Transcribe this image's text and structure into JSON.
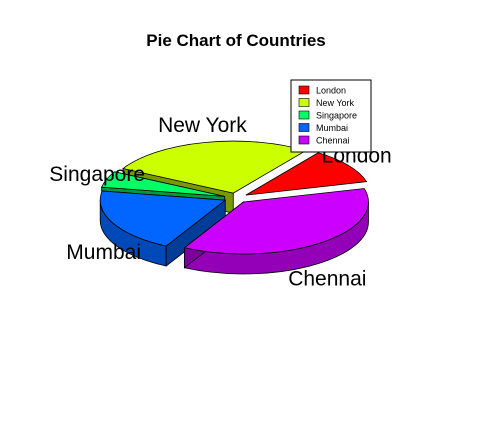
{
  "chart_data": {
    "type": "pie",
    "title": "Pie Chart of Countries",
    "three_d": true,
    "categories": [
      "London",
      "New York",
      "Singapore",
      "Mumbai",
      "Chennai"
    ],
    "values": [
      11,
      27,
      5,
      20,
      37
    ],
    "colors": [
      "#ff0000",
      "#ccff00",
      "#00ff66",
      "#0066ff",
      "#cc00ff"
    ],
    "legend": {
      "position": "top-right",
      "entries": [
        "London",
        "New York",
        "Singapore",
        "Mumbai",
        "Chennai"
      ]
    },
    "slice_labels": [
      "London",
      "New York",
      "Singapore",
      "Mumbai",
      "Chennai"
    ]
  }
}
